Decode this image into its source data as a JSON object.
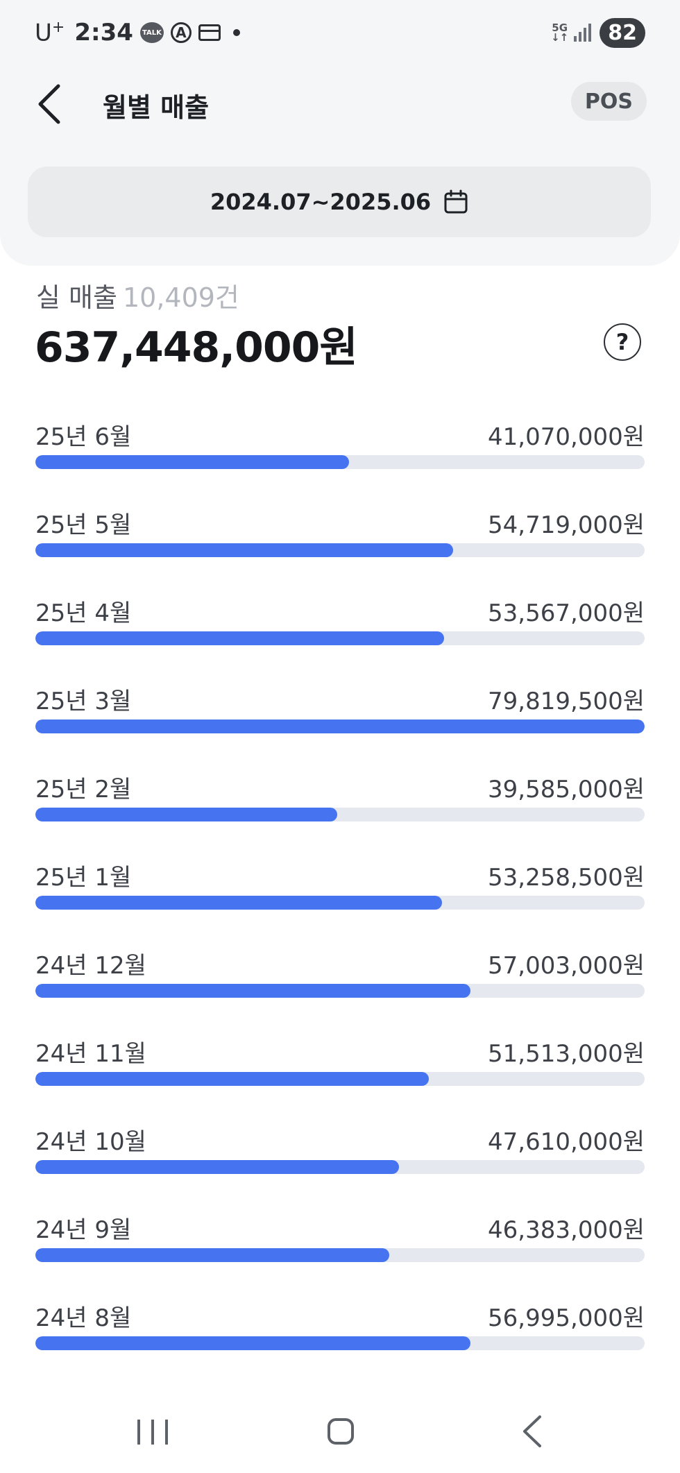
{
  "status_bar": {
    "carrier": "U",
    "carrier_sup": "+",
    "time": "2:34",
    "talk_icon_text": "TALK",
    "a_icon_text": "A",
    "network": "5G",
    "battery": "82"
  },
  "header": {
    "title": "월별 매출",
    "pos_label": "POS"
  },
  "date_range": {
    "label": "2024.07~2025.06"
  },
  "summary": {
    "label": "실 매출",
    "count": "10,409건",
    "total": "637,448,000원"
  },
  "months": [
    {
      "label": "25년 6월",
      "amount": "41,070,000원",
      "value": 41070000
    },
    {
      "label": "25년 5월",
      "amount": "54,719,000원",
      "value": 54719000
    },
    {
      "label": "25년 4월",
      "amount": "53,567,000원",
      "value": 53567000
    },
    {
      "label": "25년 3월",
      "amount": "79,819,500원",
      "value": 79819500
    },
    {
      "label": "25년 2월",
      "amount": "39,585,000원",
      "value": 39585000
    },
    {
      "label": "25년 1월",
      "amount": "53,258,500원",
      "value": 53258500
    },
    {
      "label": "24년 12월",
      "amount": "57,003,000원",
      "value": 57003000
    },
    {
      "label": "24년 11월",
      "amount": "51,513,000원",
      "value": 51513000
    },
    {
      "label": "24년 10월",
      "amount": "47,610,000원",
      "value": 47610000
    },
    {
      "label": "24년 9월",
      "amount": "46,383,000원",
      "value": 46383000
    },
    {
      "label": "24년 8월",
      "amount": "56,995,000원",
      "value": 56995000
    }
  ],
  "colors": {
    "bar": "#4674f0",
    "track": "#e6e8ef"
  }
}
